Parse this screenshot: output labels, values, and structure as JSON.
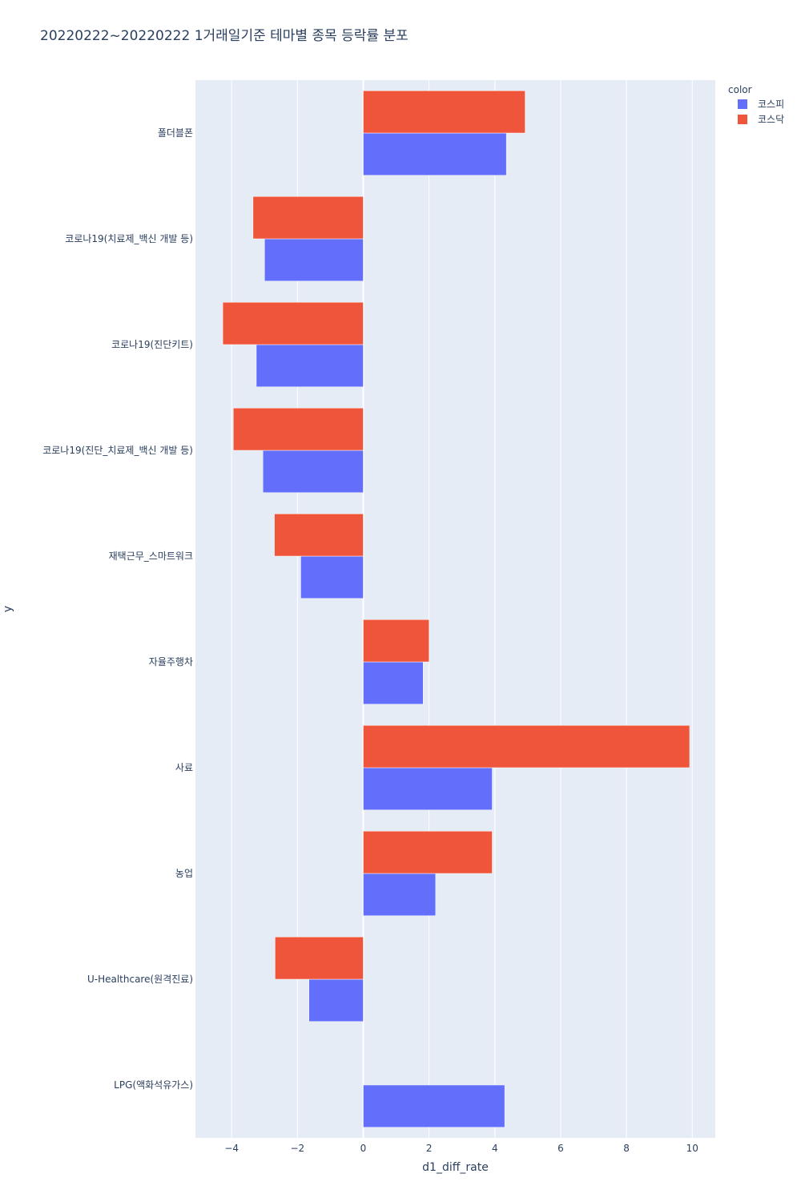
{
  "chart_data": {
    "type": "bar",
    "orientation": "horizontal",
    "barmode": "group",
    "title": "20220222~20220222 1거래일기준 테마별 종목 등락률 분포",
    "xlabel": "d1_diff_rate",
    "ylabel": "y",
    "xlim": [
      -5.1,
      10.7
    ],
    "x_ticks": [
      -4,
      -2,
      0,
      2,
      4,
      6,
      8,
      10
    ],
    "x_tick_labels": [
      "−4",
      "−2",
      "0",
      "2",
      "4",
      "6",
      "8",
      "10"
    ],
    "grid": true,
    "legend": {
      "title": "color",
      "placement": "top-right"
    },
    "categories": [
      "폴더블폰",
      "코로나19(치료제_백신 개발 등)",
      "코로나19(진단키트)",
      "코로나19(진단_치료제_백신 개발 등)",
      "재택근무_스마트워크",
      "자율주행차",
      "사료",
      "농업",
      "U-Healthcare(원격진료)",
      "LPG(액화석유가스)"
    ],
    "series": [
      {
        "name": "코스피",
        "color": "#636efa",
        "values": [
          4.35,
          -3.0,
          -3.25,
          -3.05,
          -1.9,
          1.82,
          3.92,
          2.2,
          -1.65,
          4.3
        ]
      },
      {
        "name": "코스닥",
        "color": "#ef553b",
        "values": [
          4.92,
          -3.35,
          -4.27,
          -3.95,
          -2.7,
          2.0,
          9.92,
          3.92,
          -2.68,
          null
        ]
      }
    ]
  },
  "colors": {
    "plot_bg": "#e5ecf6",
    "grid": "#ffffff",
    "text": "#2a3f5f"
  }
}
